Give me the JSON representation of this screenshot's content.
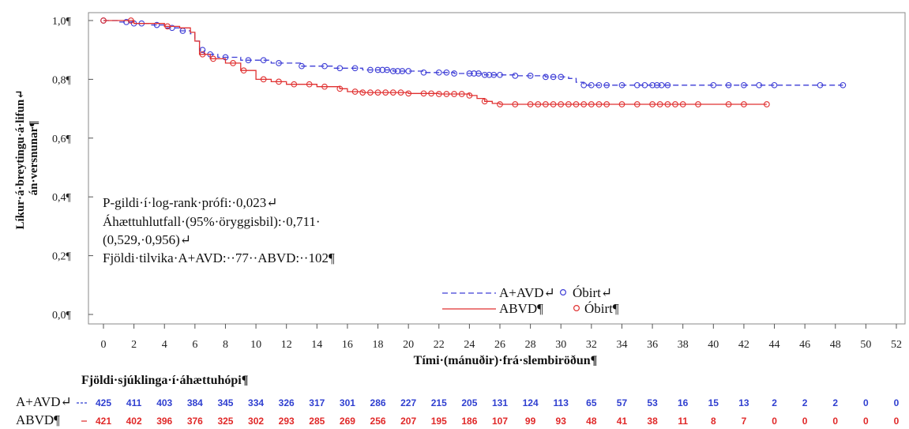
{
  "chart_data": {
    "type": "line",
    "xlabel": "Tími·(mánuðir)·frá·slembiröðun¶",
    "ylabel_lines": [
      "Líkur·á·breytingu·á·lifun↵",
      "án·versnunar¶"
    ],
    "xlim": [
      0,
      52
    ],
    "ylim": [
      0,
      1
    ],
    "x_ticks": [
      0,
      2,
      4,
      6,
      8,
      10,
      12,
      14,
      16,
      18,
      20,
      22,
      24,
      26,
      28,
      30,
      32,
      34,
      36,
      38,
      40,
      42,
      44,
      46,
      48,
      50,
      52
    ],
    "y_ticks": [
      {
        "value": 0.0,
        "label": "0,0¶"
      },
      {
        "value": 0.2,
        "label": "0,2¶"
      },
      {
        "value": 0.4,
        "label": "0,4¶"
      },
      {
        "value": 0.6,
        "label": "0,6¶"
      },
      {
        "value": 0.8,
        "label": "0,8¶"
      },
      {
        "value": 1.0,
        "label": "1,0¶"
      }
    ],
    "annotation_lines": [
      "P-gildi·í·log-rank·prófi:·0,023↵",
      "Áhættuhlutfall·(95%·öryggisbil):·0,711·",
      "(0,529,·0,956)↵",
      "Fjöldi·tilvika·A+AVD:··77··ABVD:··102¶"
    ],
    "legend": {
      "placement": "bottom-right",
      "entries": [
        {
          "label": "A+AVD↵",
          "censor_label": "Óbirt↵"
        },
        {
          "label": "ABVD¶",
          "censor_label": "Óbirt¶"
        }
      ]
    },
    "series": [
      {
        "name": "A+AVD",
        "color": "#3d3dd6",
        "line_style": "dashed",
        "points": [
          [
            0,
            1.0
          ],
          [
            1,
            0.995
          ],
          [
            2,
            0.99
          ],
          [
            3,
            0.985
          ],
          [
            4,
            0.975
          ],
          [
            5,
            0.965
          ],
          [
            5.7,
            0.955
          ],
          [
            6.0,
            0.93
          ],
          [
            6.3,
            0.9
          ],
          [
            6.6,
            0.885
          ],
          [
            7.5,
            0.875
          ],
          [
            9,
            0.865
          ],
          [
            11,
            0.855
          ],
          [
            13,
            0.845
          ],
          [
            15,
            0.838
          ],
          [
            17,
            0.832
          ],
          [
            19,
            0.828
          ],
          [
            21,
            0.823
          ],
          [
            23,
            0.82
          ],
          [
            25,
            0.815
          ],
          [
            27,
            0.812
          ],
          [
            29,
            0.808
          ],
          [
            30.5,
            0.803
          ],
          [
            31,
            0.79
          ],
          [
            31.5,
            0.78
          ],
          [
            33,
            0.78
          ],
          [
            40,
            0.78
          ],
          [
            48.5,
            0.78
          ]
        ],
        "censored_x": [
          0,
          1.5,
          2,
          2.5,
          3.5,
          4.5,
          5.2,
          6.5,
          7,
          8,
          9.5,
          10.5,
          11.5,
          13,
          14.5,
          15.5,
          16.5,
          17.5,
          18,
          18.3,
          18.6,
          19,
          19.3,
          19.6,
          20,
          21,
          22,
          22.5,
          23,
          24,
          24.3,
          24.6,
          25,
          25.3,
          25.6,
          26,
          27,
          28,
          29,
          29.5,
          30,
          31.5,
          32,
          32.5,
          33,
          34,
          35,
          35.5,
          36,
          36.3,
          36.6,
          37,
          40,
          41,
          42,
          43,
          44,
          47,
          48.5
        ]
      },
      {
        "name": "ABVD",
        "color": "#e03030",
        "line_style": "solid",
        "points": [
          [
            0,
            1.0
          ],
          [
            2,
            0.99
          ],
          [
            4,
            0.98
          ],
          [
            5,
            0.975
          ],
          [
            5.7,
            0.96
          ],
          [
            6.0,
            0.93
          ],
          [
            6.3,
            0.885
          ],
          [
            7,
            0.87
          ],
          [
            8,
            0.855
          ],
          [
            9,
            0.83
          ],
          [
            10,
            0.8
          ],
          [
            11,
            0.792
          ],
          [
            12,
            0.783
          ],
          [
            14,
            0.775
          ],
          [
            15.5,
            0.768
          ],
          [
            16,
            0.758
          ],
          [
            17,
            0.755
          ],
          [
            20,
            0.752
          ],
          [
            22,
            0.75
          ],
          [
            24,
            0.745
          ],
          [
            24.5,
            0.735
          ],
          [
            25,
            0.725
          ],
          [
            25.5,
            0.718
          ],
          [
            26,
            0.715
          ],
          [
            30,
            0.715
          ],
          [
            35,
            0.715
          ],
          [
            43.5,
            0.715
          ]
        ],
        "censored_x": [
          0,
          1.8,
          4.2,
          6.5,
          7.2,
          8.5,
          9.2,
          10.5,
          11.5,
          12.5,
          13.5,
          14.5,
          15.5,
          16.5,
          17,
          17.5,
          18,
          18.5,
          19,
          19.5,
          20,
          21,
          21.5,
          22,
          22.5,
          23,
          23.5,
          24,
          25,
          26,
          27,
          28,
          28.5,
          29,
          29.5,
          30,
          30.5,
          31,
          31.5,
          32,
          32.5,
          33,
          34,
          35,
          36,
          36.5,
          37,
          37.5,
          38,
          39,
          41,
          42,
          43.5
        ]
      }
    ],
    "risk_table": {
      "title": "Fjöldi·sjúklinga·í·áhættuhópi¶",
      "times": [
        0,
        2,
        4,
        6,
        8,
        10,
        12,
        14,
        16,
        18,
        20,
        22,
        24,
        26,
        28,
        30,
        32,
        34,
        36,
        38,
        40,
        42,
        44,
        46,
        48,
        50,
        52
      ],
      "rows": [
        {
          "label": "A+AVD↵",
          "color": "#2f3fd0",
          "values": [
            425,
            411,
            403,
            384,
            345,
            334,
            326,
            317,
            301,
            286,
            227,
            215,
            205,
            131,
            124,
            113,
            65,
            57,
            53,
            16,
            15,
            13,
            2,
            2,
            2,
            0,
            0
          ]
        },
        {
          "label": "ABVD¶",
          "color": "#e02828",
          "values": [
            421,
            402,
            396,
            376,
            325,
            302,
            293,
            285,
            269,
            256,
            207,
            195,
            186,
            107,
            99,
            93,
            48,
            41,
            38,
            11,
            8,
            7,
            0,
            0,
            0,
            0,
            0
          ]
        }
      ]
    }
  }
}
